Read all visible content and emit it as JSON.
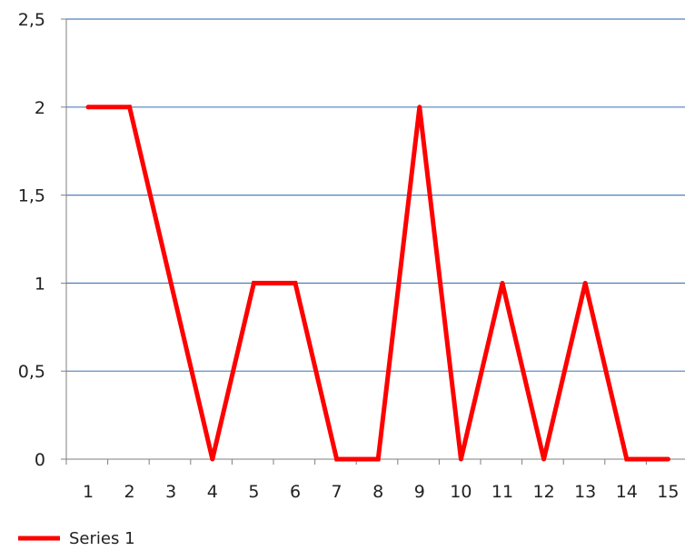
{
  "chart_data": {
    "type": "line",
    "title": "",
    "xlabel": "",
    "ylabel": "",
    "x": [
      1,
      2,
      3,
      4,
      5,
      6,
      7,
      8,
      9,
      10,
      11,
      12,
      13,
      14,
      15
    ],
    "x_tick_labels": [
      "1",
      "2",
      "3",
      "4",
      "5",
      "6",
      "7",
      "8",
      "9",
      "10",
      "11",
      "12",
      "13",
      "14",
      "15"
    ],
    "series": [
      {
        "name": "Series 1",
        "color": "#ff0000",
        "values": [
          2,
          2,
          1,
          0,
          1,
          1,
          0,
          0,
          2,
          0,
          1,
          0,
          1,
          0,
          0
        ]
      }
    ],
    "ylim": [
      0,
      2.5
    ],
    "y_ticks": [
      0,
      0.5,
      1,
      1.5,
      2,
      2.5
    ],
    "y_tick_labels": [
      "0",
      "0,5",
      "1",
      "1,5",
      "2",
      "2,5"
    ],
    "grid": true,
    "grid_color": "#4f81bd",
    "axis_color": "#7f7f7f",
    "legend_position": "bottom-left"
  }
}
